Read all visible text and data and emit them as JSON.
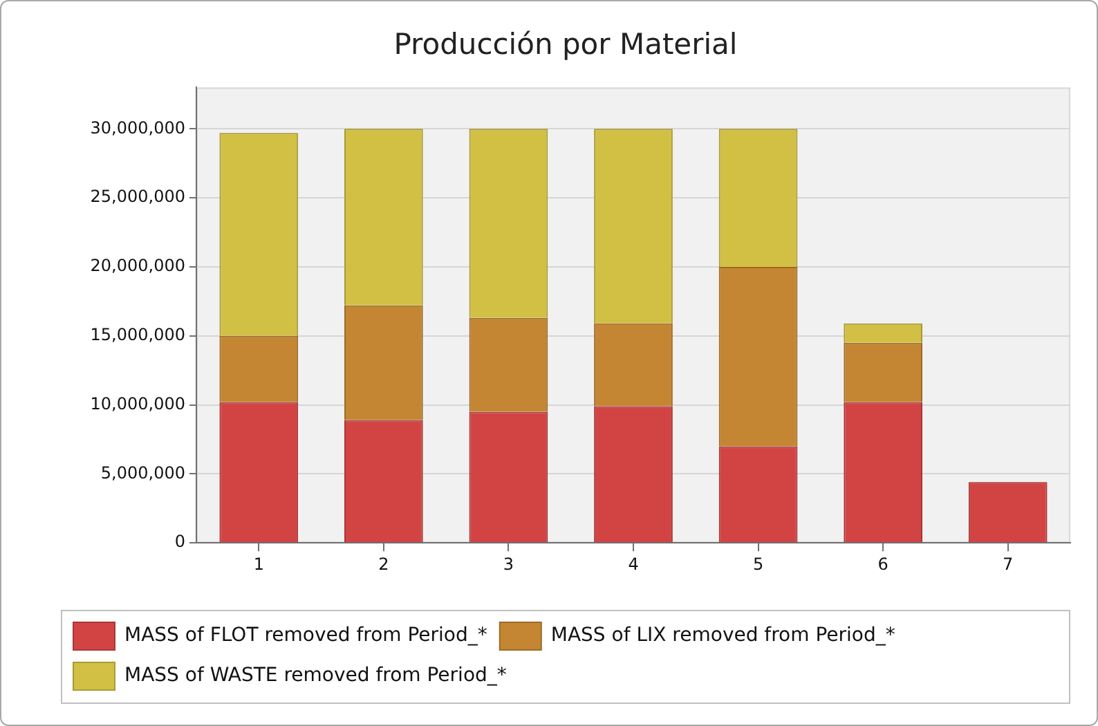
{
  "chart_data": {
    "type": "bar",
    "title": "Producción por Material",
    "categories": [
      "1",
      "2",
      "3",
      "4",
      "5",
      "6",
      "7"
    ],
    "series": [
      {
        "name": "MASS of FLOT removed from Period_*",
        "color": "#d24444",
        "values": [
          10200000,
          8900000,
          9500000,
          9900000,
          7000000,
          10200000,
          4400000
        ]
      },
      {
        "name": "MASS of LIX removed from Period_*",
        "color": "#c48632",
        "values": [
          4800000,
          8300000,
          6800000,
          6000000,
          13000000,
          4300000,
          0
        ]
      },
      {
        "name": "MASS of WASTE removed from Period_*",
        "color": "#d2c044",
        "values": [
          14700000,
          12800000,
          13700000,
          14100000,
          10000000,
          1400000,
          0
        ]
      }
    ],
    "stacked": true,
    "ylim": [
      0,
      33000000
    ],
    "yticks": [
      0,
      {
        "value": 5000000,
        "label": "5,000,000"
      },
      {
        "value": 10000000,
        "label": "10,000,000"
      },
      {
        "value": 15000000,
        "label": "15,000,000"
      },
      {
        "value": 20000000,
        "label": "20,000,000"
      },
      {
        "value": 25000000,
        "label": "25,000,000"
      },
      {
        "value": 30000000,
        "label": "30,000,000"
      }
    ],
    "grid": "y",
    "legend": "bottom"
  }
}
